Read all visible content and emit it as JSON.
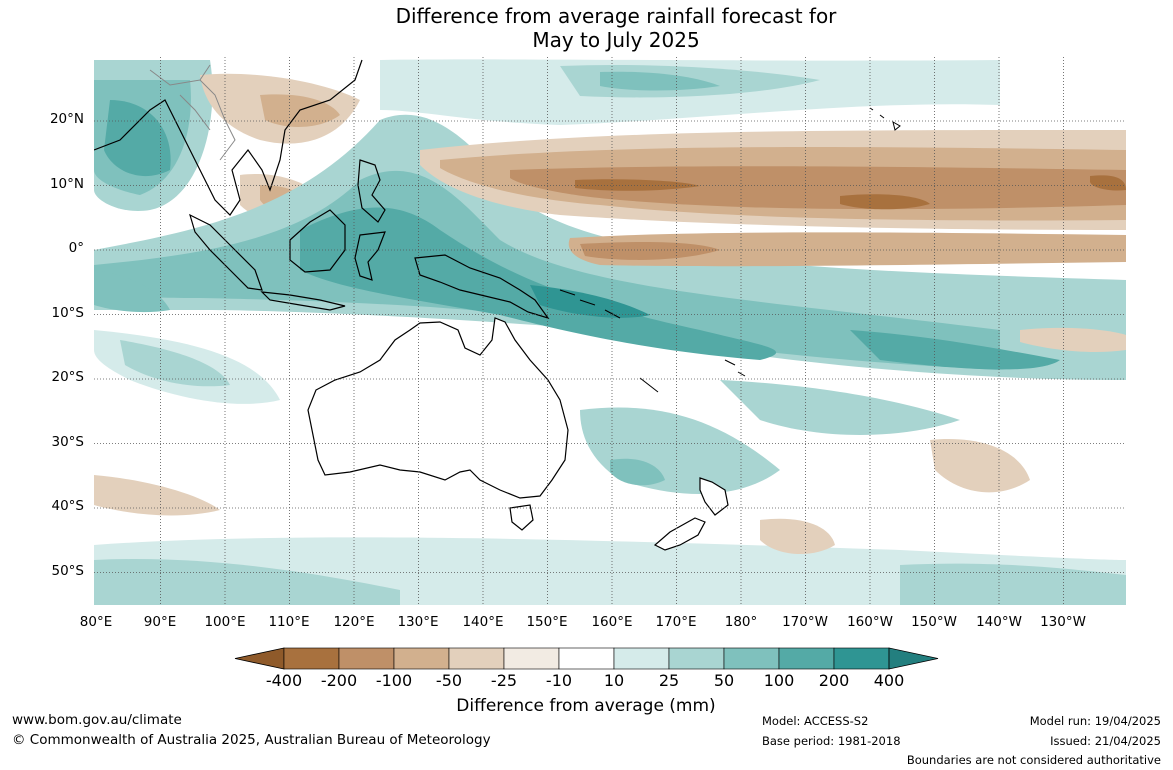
{
  "title": {
    "line1": "Difference from average rainfall forecast for",
    "line2": "May to July 2025"
  },
  "map": {
    "lat_labels": [
      "20°N",
      "10°N",
      "0°",
      "10°S",
      "20°S",
      "30°S",
      "40°S",
      "50°S"
    ],
    "lon_labels": [
      "80°E",
      "90°E",
      "100°E",
      "110°E",
      "120°E",
      "130°E",
      "140°E",
      "150°E",
      "160°E",
      "170°E",
      "180°",
      "170°W",
      "160°W",
      "150°W",
      "140°W",
      "130°W"
    ],
    "land_color": "#ffffff",
    "coast_color": "#000000",
    "border_color": "#888888"
  },
  "legend": {
    "title": "Difference from average (mm)",
    "ticks": [
      "-400",
      "-200",
      "-100",
      "-50",
      "-25",
      "-10",
      "10",
      "25",
      "50",
      "100",
      "200",
      "400"
    ],
    "colors": [
      "#8f5a2a",
      "#a8713e",
      "#bf9068",
      "#d2b08e",
      "#e3d0bc",
      "#f2ebe3",
      "#ffffff",
      "#d5ebea",
      "#a9d5d2",
      "#7fc1bd",
      "#54aaa6",
      "#2f9593",
      "#237f7f"
    ]
  },
  "footer": {
    "url": "www.bom.gov.au/climate",
    "copyright": "© Commonwealth of Australia 2025, Australian Bureau of Meteorology",
    "model": "Model: ACCESS-S2",
    "base_period": "Base period: 1981-2018",
    "model_run": "Model run: 19/04/2025",
    "issued": "Issued: 21/04/2025",
    "boundaries_note": "Boundaries are not considered authoritative"
  }
}
